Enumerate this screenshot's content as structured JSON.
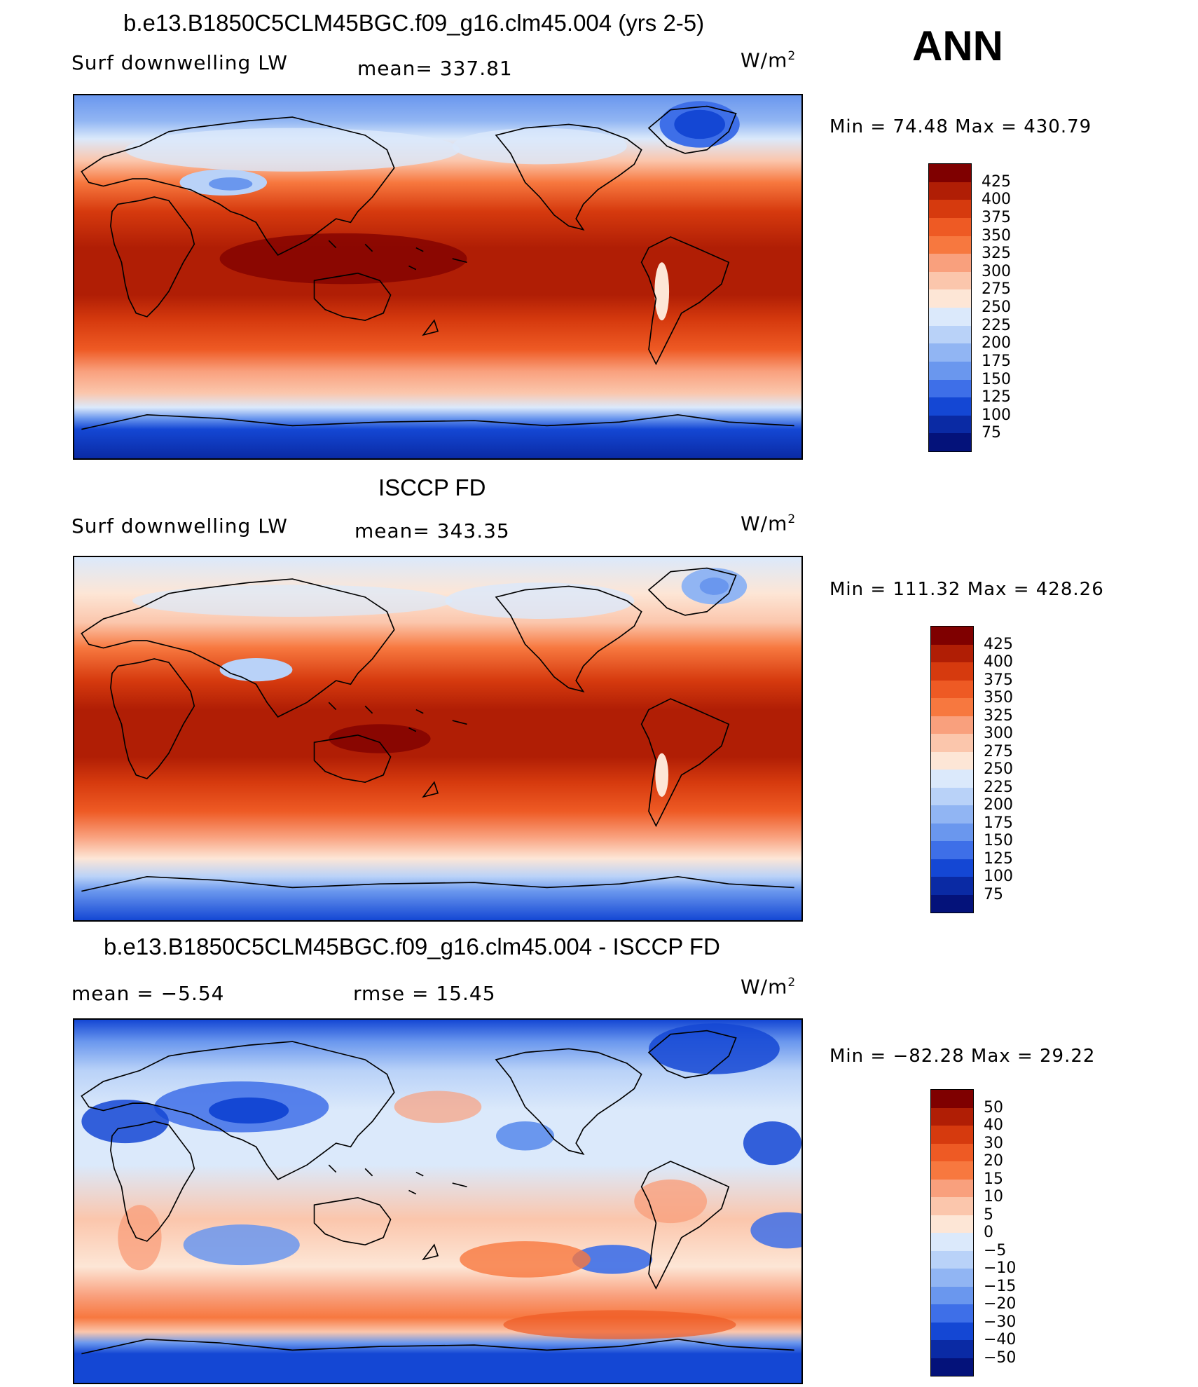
{
  "season": "ANN",
  "units_text": "W/m",
  "units_sup": "2",
  "panels": [
    {
      "title": "b.e13.B1850C5CLM45BGC.f09_g16.clm45.004 (yrs 2-5)",
      "left_label": "Surf downwelling LW",
      "center_label": "mean=  337.81",
      "minmax": "Min  =   74.48  Max  =  430.79",
      "colorbar": {
        "labels": [
          "425",
          "400",
          "375",
          "350",
          "325",
          "300",
          "275",
          "250",
          "225",
          "200",
          "175",
          "150",
          "125",
          "100",
          "75"
        ],
        "colors": [
          "#7f0000",
          "#b01e05",
          "#d63a0e",
          "#ee5a24",
          "#f7783f",
          "#f9a07d",
          "#fbc6ac",
          "#fde6d6",
          "#dbe9fb",
          "#b9d2f8",
          "#91b5f3",
          "#6a97ee",
          "#3e6fe8",
          "#1447d4",
          "#0a2aa4",
          "#04127a"
        ]
      },
      "map_kind": "mean"
    },
    {
      "title": "ISCCP FD",
      "left_label": "Surf downwelling LW",
      "center_label": "mean=  343.35",
      "minmax": "Min  = 111.32  Max  = 428.26",
      "colorbar": {
        "labels": [
          "425",
          "400",
          "375",
          "350",
          "325",
          "300",
          "275",
          "250",
          "225",
          "200",
          "175",
          "150",
          "125",
          "100",
          "75"
        ],
        "colors": [
          "#7f0000",
          "#b01e05",
          "#d63a0e",
          "#ee5a24",
          "#f7783f",
          "#f9a07d",
          "#fbc6ac",
          "#fde6d6",
          "#dbe9fb",
          "#b9d2f8",
          "#91b5f3",
          "#6a97ee",
          "#3e6fe8",
          "#1447d4",
          "#0a2aa4",
          "#04127a"
        ]
      },
      "map_kind": "mean"
    },
    {
      "title": "b.e13.B1850C5CLM45BGC.f09_g16.clm45.004 - ISCCP FD",
      "left_label": "mean  =    −5.54",
      "center_label": "rmse  =    15.45",
      "minmax": "Min  = −82.28  Max  =   29.22",
      "colorbar": {
        "labels": [
          "50",
          "40",
          "30",
          "20",
          "15",
          "10",
          "5",
          "0",
          "−5",
          "−10",
          "−15",
          "−20",
          "−30",
          "−40",
          "−50"
        ],
        "colors": [
          "#7f0000",
          "#b01e05",
          "#d63a0e",
          "#ee5a24",
          "#f7783f",
          "#f9a07d",
          "#fbc6ac",
          "#fde6d6",
          "#dbe9fb",
          "#b9d2f8",
          "#91b5f3",
          "#6a97ee",
          "#3e6fe8",
          "#1447d4",
          "#0a2aa4",
          "#04127a"
        ]
      },
      "map_kind": "diff"
    }
  ]
}
